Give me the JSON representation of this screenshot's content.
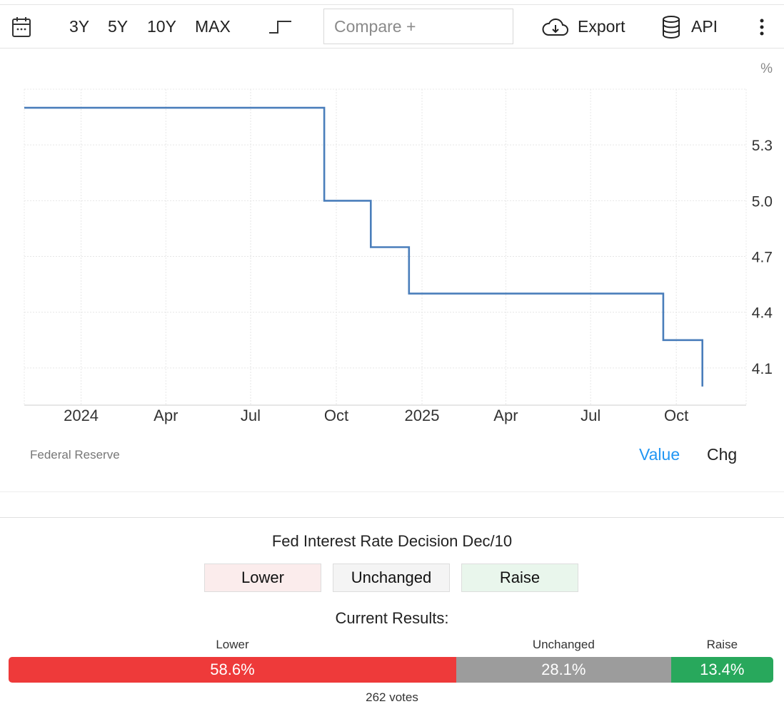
{
  "toolbar": {
    "calendar_icon": "calendar-icon",
    "ranges": [
      "3Y",
      "5Y",
      "10Y",
      "MAX"
    ],
    "chart_type_icon": "step-line-icon",
    "compare_placeholder": "Compare +",
    "export_label": "Export",
    "export_icon": "cloud-download-icon",
    "api_label": "API",
    "api_icon": "database-icon",
    "more_icon": "vertical-dots-icon"
  },
  "chart_data": {
    "type": "line",
    "step": true,
    "unit": "%",
    "x_ticks": [
      {
        "label": "2024",
        "date": "2024-01-01"
      },
      {
        "label": "Apr",
        "date": "2024-04-01"
      },
      {
        "label": "Jul",
        "date": "2024-07-01"
      },
      {
        "label": "Oct",
        "date": "2024-10-01"
      },
      {
        "label": "2025",
        "date": "2025-01-01"
      },
      {
        "label": "Apr",
        "date": "2025-04-01"
      },
      {
        "label": "Jul",
        "date": "2025-07-01"
      },
      {
        "label": "Oct",
        "date": "2025-10-01"
      }
    ],
    "y_ticks": [
      "5.3",
      "5.0",
      "4.7",
      "4.4",
      "4.1"
    ],
    "xlim": [
      "2023-11-01",
      "2025-12-15"
    ],
    "ylim": [
      3.9,
      5.6
    ],
    "grid": true,
    "series": [
      {
        "color": "#4a7ebb",
        "points": [
          {
            "date": "2023-11-01",
            "value": 5.5
          },
          {
            "date": "2024-09-18",
            "value": 5.0
          },
          {
            "date": "2024-11-07",
            "value": 4.75
          },
          {
            "date": "2024-12-18",
            "value": 4.5
          },
          {
            "date": "2025-09-17",
            "value": 4.25
          },
          {
            "date": "2025-10-29",
            "value": 4.0
          }
        ]
      }
    ]
  },
  "footer": {
    "source": "Federal Reserve",
    "value_toggle": "Value",
    "chg_toggle": "Chg",
    "active_color": "#2196f3"
  },
  "poll": {
    "title": "Fed Interest Rate Decision Dec/10",
    "options": [
      "Lower",
      "Unchanged",
      "Raise"
    ],
    "results_label": "Current Results:",
    "results": [
      {
        "label": "Lower",
        "percent": 58.6,
        "text": "58.6%",
        "color": "#ee3a3a"
      },
      {
        "label": "Unchanged",
        "percent": 28.1,
        "text": "28.1%",
        "color": "#9c9c9c"
      },
      {
        "label": "Raise",
        "percent": 13.4,
        "text": "13.4%",
        "color": "#28a85c"
      }
    ],
    "votes": "262 votes"
  }
}
